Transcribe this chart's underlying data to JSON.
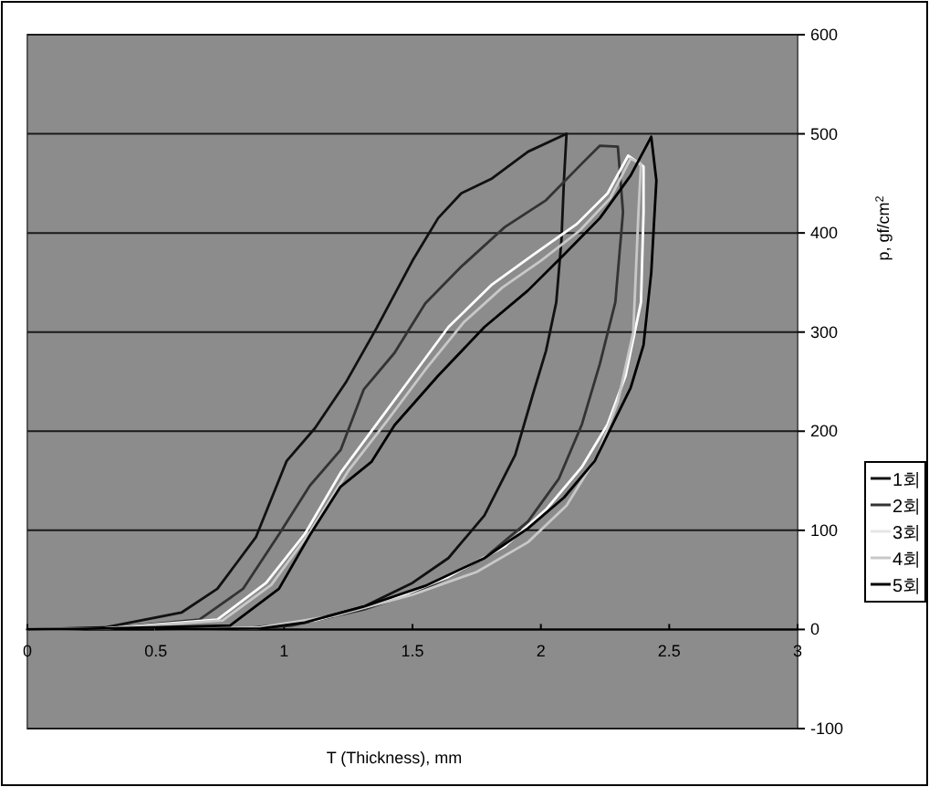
{
  "chart_data": {
    "type": "line",
    "xlabel": "T (Thickness), mm",
    "ylabel": "p, gf/cm$^{2}$",
    "xlim": [
      0,
      3
    ],
    "ylim": [
      -100,
      600
    ],
    "xticks": [
      0,
      0.5,
      1,
      1.5,
      2,
      2.5,
      3
    ],
    "yticks": [
      -100,
      0,
      100,
      200,
      300,
      400,
      500,
      600
    ],
    "grid": "y",
    "legend": "right",
    "series": [
      {
        "name": "1회",
        "color": "#111111",
        "x": [
          0,
          0.3,
          0.6,
          0.74,
          0.89,
          1.01,
          1.12,
          1.24,
          1.36,
          1.5,
          1.6,
          1.69,
          1.81,
          1.95,
          2.1,
          2.09,
          2.08,
          2.06,
          2.02,
          1.97,
          1.9,
          1.78,
          1.64,
          1.5,
          1.31,
          1.08,
          0.84,
          0.5
        ],
        "values": [
          0,
          2,
          17,
          41,
          93,
          170,
          203,
          249,
          304,
          372,
          415,
          440,
          455,
          482,
          500,
          453,
          392,
          330,
          281,
          238,
          176,
          115,
          72,
          47,
          23,
          7,
          1,
          0
        ]
      },
      {
        "name": "2회",
        "color": "#333333",
        "x": [
          0,
          0.3,
          0.67,
          0.84,
          0.98,
          1.1,
          1.22,
          1.31,
          1.43,
          1.55,
          1.69,
          1.86,
          2.02,
          2.16,
          2.23,
          2.3,
          2.32,
          2.29,
          2.23,
          2.16,
          2.07,
          1.95,
          1.78,
          1.55,
          1.31,
          1.03,
          0.84,
          0.5
        ],
        "values": [
          0,
          1,
          10,
          41,
          96,
          145,
          181,
          242,
          279,
          329,
          366,
          406,
          433,
          470,
          488,
          487,
          421,
          330,
          268,
          207,
          152,
          109,
          72,
          41,
          20,
          4,
          0,
          0
        ]
      },
      {
        "name": "3회",
        "color": "#ffffff",
        "x": [
          0,
          0.3,
          0.74,
          0.93,
          1.08,
          1.22,
          1.36,
          1.5,
          1.64,
          1.81,
          1.97,
          2.14,
          2.26,
          2.34,
          2.4,
          2.4,
          2.39,
          2.33,
          2.26,
          2.16,
          2.02,
          1.86,
          1.64,
          1.41,
          1.12,
          0.89,
          0.5
        ],
        "values": [
          0,
          1,
          10,
          47,
          96,
          158,
          207,
          256,
          305,
          348,
          378,
          409,
          440,
          478,
          467,
          421,
          330,
          256,
          207,
          164,
          121,
          84,
          53,
          29,
          9,
          1,
          0
        ]
      },
      {
        "name": "4회",
        "color": "#c8c8c8",
        "x": [
          0,
          0.3,
          0.76,
          0.95,
          1.1,
          1.25,
          1.4,
          1.55,
          1.7,
          1.85,
          2.0,
          2.15,
          2.27,
          2.35,
          2.39,
          2.38,
          2.36,
          2.3,
          2.22,
          2.1,
          1.95,
          1.75,
          1.5,
          1.2,
          0.9,
          0.5
        ],
        "values": [
          0,
          1,
          9,
          45,
          98,
          160,
          210,
          262,
          310,
          345,
          372,
          402,
          435,
          475,
          470,
          420,
          300,
          230,
          175,
          125,
          88,
          58,
          35,
          14,
          2,
          0
        ]
      },
      {
        "name": "5회",
        "color": "#000000",
        "x": [
          0,
          0.3,
          0.79,
          0.98,
          1.1,
          1.22,
          1.34,
          1.43,
          1.6,
          1.78,
          1.95,
          2.09,
          2.23,
          2.35,
          2.43,
          2.45,
          2.43,
          2.4,
          2.35,
          2.28,
          2.21,
          2.09,
          1.95,
          1.78,
          1.55,
          1.31,
          1.08,
          0.91,
          0.5
        ],
        "values": [
          0,
          1,
          4,
          41,
          95,
          144,
          169,
          206,
          256,
          305,
          342,
          378,
          415,
          458,
          497,
          453,
          360,
          287,
          244,
          207,
          170,
          133,
          102,
          72,
          44,
          23,
          7,
          1,
          0
        ]
      }
    ]
  }
}
